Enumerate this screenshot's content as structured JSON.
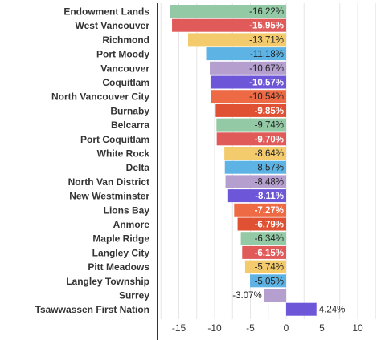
{
  "chart_data": {
    "type": "bar",
    "orientation": "horizontal",
    "categories": [
      "Endowment Lands",
      "West Vancouver",
      "Richmond",
      "Port Moody",
      "Vancouver",
      "Coquitlam",
      "North Vancouver City",
      "Burnaby",
      "Belcarra",
      "Port Coquitlam",
      "White Rock",
      "Delta",
      "North Van District",
      "New Westminster",
      "Lions Bay",
      "Anmore",
      "Maple Ridge",
      "Langley City",
      "Pitt Meadows",
      "Langley Township",
      "Surrey",
      "Tsawwassen First Nation"
    ],
    "values": [
      -16.22,
      -15.95,
      -13.71,
      -11.18,
      -10.67,
      -10.57,
      -10.54,
      -9.85,
      -9.74,
      -9.7,
      -8.64,
      -8.57,
      -8.48,
      -8.11,
      -7.27,
      -6.79,
      -6.34,
      -6.15,
      -5.74,
      -5.05,
      -3.07,
      4.24
    ],
    "value_labels": [
      "-16.22%",
      "-15.95%",
      "-13.71%",
      "-11.18%",
      "-10.67%",
      "-10.57%",
      "-10.54%",
      "-9.85%",
      "-9.74%",
      "-9.70%",
      "-8.64%",
      "-8.57%",
      "-8.48%",
      "-8.11%",
      "-7.27%",
      "-6.79%",
      "-6.34%",
      "-6.15%",
      "-5.74%",
      "-5.05%",
      "-3.07%",
      "4.24%"
    ],
    "colors": [
      "#93c9a4",
      "#e05a5a",
      "#f3cb6d",
      "#5db4e4",
      "#b49fcf",
      "#6d56d8",
      "#ee6a45",
      "#e05133",
      "#93c9a4",
      "#e05a5a",
      "#f3cb6d",
      "#5db4e4",
      "#b49fcf",
      "#6d56d8",
      "#ee6a45",
      "#e05133",
      "#93c9a4",
      "#e05a5a",
      "#f3cb6d",
      "#5db4e4",
      "#b49fcf",
      "#6d56d8"
    ],
    "label_styles": [
      "dark",
      "light",
      "dark",
      "dark",
      "dark",
      "light",
      "dark",
      "light",
      "dark",
      "light",
      "dark",
      "dark",
      "dark",
      "light",
      "light",
      "light",
      "dark",
      "light",
      "dark",
      "dark",
      "outside",
      "outside"
    ],
    "x_ticks": [
      -15,
      -10,
      -5,
      0,
      5,
      10
    ],
    "x_tick_labels": [
      "-15",
      "-10",
      "-5",
      "0",
      "5",
      "10"
    ],
    "xlim": [
      -18.5,
      12.5
    ],
    "title": "",
    "xlabel": "",
    "ylabel": "",
    "grid": true,
    "legend": "none"
  }
}
